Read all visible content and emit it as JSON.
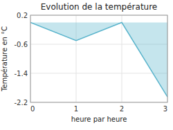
{
  "chart_data": {
    "type": "area",
    "title": "Evolution de la température",
    "xlabel": "heure par heure",
    "ylabel": "Température en °C",
    "x": [
      0,
      1,
      2,
      3
    ],
    "values": [
      0.0,
      -0.5,
      0.0,
      -2.05
    ],
    "color": "#5ab4cc",
    "xlim": [
      0,
      3
    ],
    "ylim": [
      -2.2,
      0.2
    ],
    "xticks": [
      0,
      1,
      2,
      3
    ],
    "yticks": [
      0.2,
      -0.6,
      -1.4,
      -2.2
    ],
    "grid": true
  }
}
